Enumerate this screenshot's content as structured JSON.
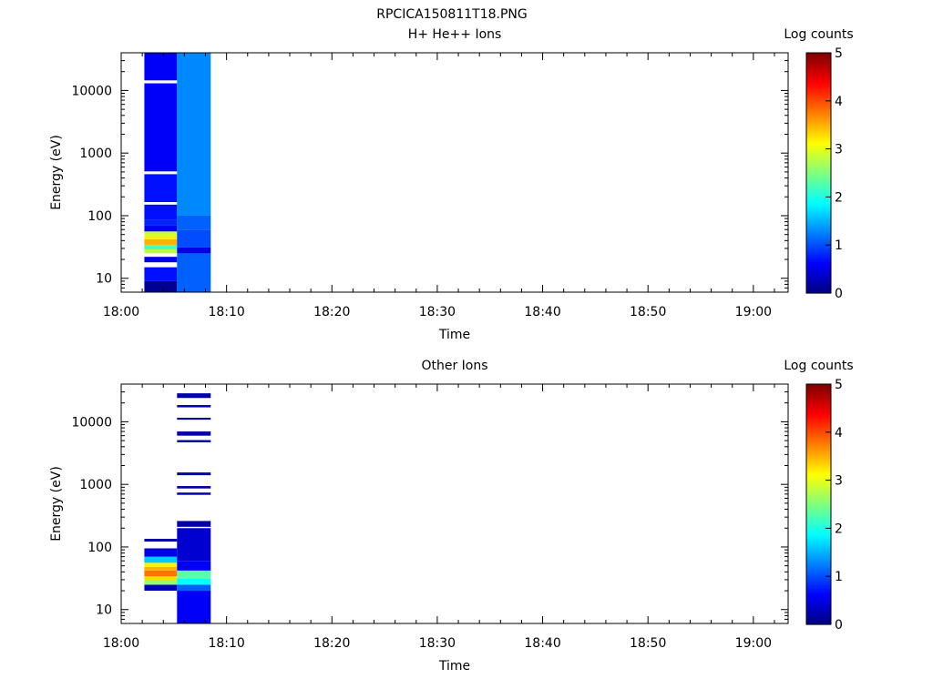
{
  "figure_title": "RPCICA150811T18.PNG",
  "colormap": [
    "#00007f",
    "#0000ff",
    "#007fff",
    "#00ffff",
    "#7fff7f",
    "#ffff00",
    "#ff7f00",
    "#ff0000",
    "#7f0000"
  ],
  "chart_data": [
    {
      "type": "heatmap",
      "title": "H+ He++ Ions",
      "xlabel": "Time",
      "ylabel": "Energy (eV)",
      "x_ticks": [
        "18:00",
        "18:10",
        "18:20",
        "18:30",
        "18:40",
        "18:50",
        "19:00"
      ],
      "xlim_minutes": [
        0,
        63.3
      ],
      "y_scale": "log",
      "ylim": [
        6,
        40000
      ],
      "y_ticks": [
        {
          "value": 10,
          "label": "10"
        },
        {
          "value": 100,
          "label": "100"
        },
        {
          "value": 1000,
          "label": "1000"
        },
        {
          "value": 10000,
          "label": "10000"
        }
      ],
      "colorbar": {
        "label": "Log counts",
        "min": 0,
        "max": 5,
        "ticks": [
          "0",
          "1",
          "2",
          "3",
          "4",
          "5"
        ]
      },
      "columns": [
        {
          "start_min": 2.2,
          "end_min": 5.3,
          "bins": [
            {
              "e_lo": 6,
              "e_hi": 9,
              "v": 0.1
            },
            {
              "e_lo": 9,
              "e_hi": 15,
              "v": 0.7
            },
            {
              "e_lo": 15,
              "e_hi": 18,
              "v": null
            },
            {
              "e_lo": 18,
              "e_hi": 22,
              "v": 0.5
            },
            {
              "e_lo": 22,
              "e_hi": 25,
              "v": null
            },
            {
              "e_lo": 25,
              "e_hi": 29,
              "v": 2.8
            },
            {
              "e_lo": 29,
              "e_hi": 34,
              "v": 2.2
            },
            {
              "e_lo": 34,
              "e_hi": 42,
              "v": 3.5
            },
            {
              "e_lo": 42,
              "e_hi": 48,
              "v": 3.2
            },
            {
              "e_lo": 48,
              "e_hi": 56,
              "v": 2.9
            },
            {
              "e_lo": 56,
              "e_hi": 70,
              "v": 0.6
            },
            {
              "e_lo": 70,
              "e_hi": 85,
              "v": 0.8
            },
            {
              "e_lo": 85,
              "e_hi": 150,
              "v": 0.7
            },
            {
              "e_lo": 150,
              "e_hi": 165,
              "v": null
            },
            {
              "e_lo": 165,
              "e_hi": 460,
              "v": 0.7
            },
            {
              "e_lo": 460,
              "e_hi": 510,
              "v": null
            },
            {
              "e_lo": 510,
              "e_hi": 13000,
              "v": 0.6
            },
            {
              "e_lo": 13000,
              "e_hi": 14500,
              "v": null
            },
            {
              "e_lo": 14500,
              "e_hi": 40000,
              "v": 0.6
            }
          ]
        },
        {
          "start_min": 5.3,
          "end_min": 8.5,
          "bins": [
            {
              "e_lo": 6,
              "e_hi": 25,
              "v": 1.1
            },
            {
              "e_lo": 25,
              "e_hi": 31,
              "v": 0.5
            },
            {
              "e_lo": 31,
              "e_hi": 60,
              "v": 1.0
            },
            {
              "e_lo": 60,
              "e_hi": 100,
              "v": 1.1
            },
            {
              "e_lo": 100,
              "e_hi": 40000,
              "v": 1.3
            }
          ]
        }
      ]
    },
    {
      "type": "heatmap",
      "title": "Other Ions",
      "xlabel": "Time",
      "ylabel": "Energy (eV)",
      "x_ticks": [
        "18:00",
        "18:10",
        "18:20",
        "18:30",
        "18:40",
        "18:50",
        "19:00"
      ],
      "xlim_minutes": [
        0,
        63.3
      ],
      "y_scale": "log",
      "ylim": [
        6,
        40000
      ],
      "y_ticks": [
        {
          "value": 10,
          "label": "10"
        },
        {
          "value": 100,
          "label": "100"
        },
        {
          "value": 1000,
          "label": "1000"
        },
        {
          "value": 10000,
          "label": "10000"
        }
      ],
      "colorbar": {
        "label": "Log counts",
        "min": 0,
        "max": 5,
        "ticks": [
          "0",
          "1",
          "2",
          "3",
          "4",
          "5"
        ]
      },
      "columns": [
        {
          "start_min": 2.2,
          "end_min": 5.3,
          "bins": [
            {
              "e_lo": 20,
              "e_hi": 25,
              "v": 0.3
            },
            {
              "e_lo": 25,
              "e_hi": 29,
              "v": 2.6
            },
            {
              "e_lo": 29,
              "e_hi": 34,
              "v": 3.3
            },
            {
              "e_lo": 34,
              "e_hi": 42,
              "v": 3.8
            },
            {
              "e_lo": 42,
              "e_hi": 48,
              "v": 3.5
            },
            {
              "e_lo": 48,
              "e_hi": 56,
              "v": 3.2
            },
            {
              "e_lo": 56,
              "e_hi": 70,
              "v": 1.6
            },
            {
              "e_lo": 70,
              "e_hi": 95,
              "v": 0.5
            },
            {
              "e_lo": 122,
              "e_hi": 135,
              "v": 0.2
            }
          ]
        },
        {
          "start_min": 5.3,
          "end_min": 8.5,
          "bins": [
            {
              "e_lo": 6,
              "e_hi": 20,
              "v": 0.6
            },
            {
              "e_lo": 20,
              "e_hi": 25,
              "v": 1.1
            },
            {
              "e_lo": 25,
              "e_hi": 31,
              "v": 1.9
            },
            {
              "e_lo": 31,
              "e_hi": 42,
              "v": 2.3
            },
            {
              "e_lo": 42,
              "e_hi": 60,
              "v": 0.6
            },
            {
              "e_lo": 60,
              "e_hi": 200,
              "v": 0.4
            },
            {
              "e_lo": 210,
              "e_hi": 260,
              "v": 0.2
            },
            {
              "e_lo": 680,
              "e_hi": 740,
              "v": 0.2
            },
            {
              "e_lo": 860,
              "e_hi": 940,
              "v": 0.2
            },
            {
              "e_lo": 1400,
              "e_hi": 1550,
              "v": 0.2
            },
            {
              "e_lo": 4700,
              "e_hi": 5100,
              "v": 0.2
            },
            {
              "e_lo": 6000,
              "e_hi": 7000,
              "v": 0.2
            },
            {
              "e_lo": 10800,
              "e_hi": 11600,
              "v": 0.2
            },
            {
              "e_lo": 17000,
              "e_hi": 18500,
              "v": 0.2
            },
            {
              "e_lo": 24000,
              "e_hi": 28500,
              "v": 0.2
            }
          ]
        }
      ]
    }
  ]
}
